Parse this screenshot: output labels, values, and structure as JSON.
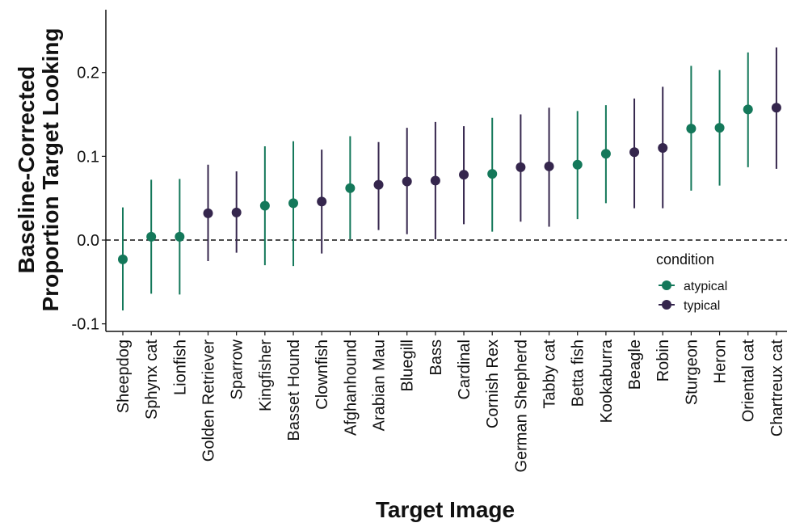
{
  "chart_data": {
    "type": "pointrange",
    "ylabel": [
      "Baseline-Corrected",
      "Proportion Target Looking"
    ],
    "xlabel": "Target Image",
    "legend_title": "condition",
    "legend_position": "right",
    "categories": [
      "Sheepdog",
      "Sphynx cat",
      "Lionfish",
      "Golden Retriever",
      "Sparrow",
      "Kingfisher",
      "Basset Hound",
      "Clownfish",
      "Afghanhound",
      "Arabian Mau",
      "Bluegill",
      "Bass",
      "Cardinal",
      "Cornish Rex",
      "German Shepherd",
      "Tabby cat",
      "Betta fish",
      "Kookaburra",
      "Beagle",
      "Robin",
      "Sturgeon",
      "Heron",
      "Oriental cat",
      "Chartreux cat"
    ],
    "series": [
      {
        "name": "atypical",
        "color": "#14785a",
        "values": [
          -0.023,
          0.004,
          0.004,
          null,
          null,
          0.041,
          0.044,
          null,
          0.062,
          null,
          null,
          null,
          null,
          0.079,
          null,
          null,
          0.09,
          0.103,
          null,
          null,
          0.133,
          0.134,
          0.156,
          null
        ],
        "lower": [
          -0.084,
          -0.064,
          -0.065,
          null,
          null,
          -0.03,
          -0.031,
          null,
          0.001,
          null,
          null,
          null,
          null,
          0.01,
          null,
          null,
          0.025,
          0.044,
          null,
          null,
          0.059,
          0.065,
          0.087,
          null
        ],
        "upper": [
          0.039,
          0.072,
          0.073,
          null,
          null,
          0.112,
          0.118,
          null,
          0.124,
          null,
          null,
          null,
          null,
          0.146,
          null,
          null,
          0.154,
          0.161,
          null,
          null,
          0.208,
          0.203,
          0.224,
          null
        ]
      },
      {
        "name": "typical",
        "color": "#35264d",
        "values": [
          null,
          null,
          null,
          0.032,
          0.033,
          null,
          null,
          0.046,
          null,
          0.066,
          0.07,
          0.071,
          0.078,
          null,
          0.087,
          0.088,
          null,
          null,
          0.105,
          0.11,
          null,
          null,
          null,
          0.158
        ],
        "lower": [
          null,
          null,
          null,
          -0.025,
          -0.015,
          null,
          null,
          -0.016,
          null,
          0.012,
          0.007,
          0.001,
          0.019,
          null,
          0.022,
          0.016,
          null,
          null,
          0.038,
          0.038,
          null,
          null,
          null,
          0.085
        ],
        "upper": [
          null,
          null,
          null,
          0.09,
          0.082,
          null,
          null,
          0.108,
          null,
          0.117,
          0.134,
          0.141,
          0.136,
          null,
          0.15,
          0.158,
          null,
          null,
          0.169,
          0.183,
          null,
          null,
          null,
          0.23
        ]
      }
    ],
    "ylim": [
      -0.109,
      0.275
    ],
    "yticks": [
      -0.1,
      {
        "value": 0,
        "label": "0.0"
      },
      0.1,
      0.2
    ],
    "reference_line": 0,
    "grid": false
  }
}
